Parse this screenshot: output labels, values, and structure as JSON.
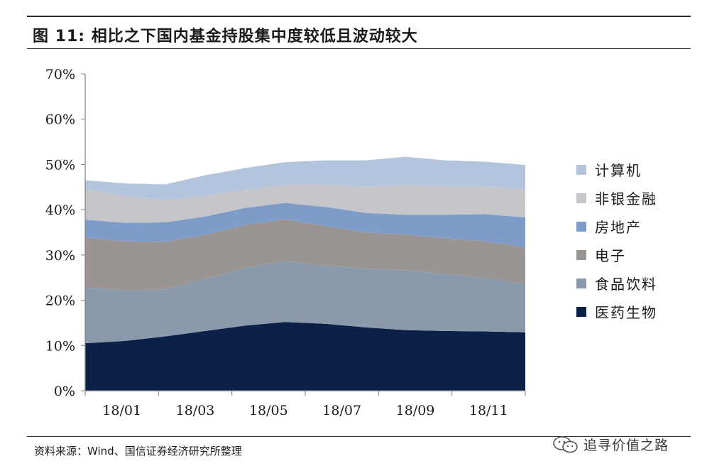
{
  "header": {
    "title": "图 11: 相比之下国内基金持股集中度较低且波动较大"
  },
  "footer": {
    "source": "资料来源：Wind、国信证券经济研究所整理"
  },
  "watermark": {
    "text": "追寻价值之路",
    "icon": "wechat-icon"
  },
  "chart_data": {
    "type": "area",
    "stacked": true,
    "x": [
      "18/01",
      "18/02",
      "18/03",
      "18/04",
      "18/05",
      "18/06",
      "18/07",
      "18/08",
      "18/09",
      "18/10",
      "18/11",
      "18/12"
    ],
    "xticks": [
      "18/01",
      "18/03",
      "18/05",
      "18/07",
      "18/09",
      "18/11"
    ],
    "xlabel": "",
    "ylabel": "",
    "ylim": [
      0,
      70
    ],
    "yticks": [
      "0%",
      "10%",
      "20%",
      "30%",
      "40%",
      "50%",
      "60%",
      "70%"
    ],
    "grid": false,
    "legend": "right",
    "series": [
      {
        "name": "医药生物",
        "color": "#0b2148",
        "values": [
          10.5,
          11.0,
          12.0,
          13.2,
          14.4,
          15.2,
          14.8,
          14.0,
          13.4,
          13.2,
          13.1,
          12.9
        ]
      },
      {
        "name": "食品饮料",
        "color": "#8a9aac",
        "values": [
          12.3,
          11.2,
          10.4,
          11.5,
          12.7,
          13.5,
          12.8,
          13.0,
          13.3,
          12.6,
          11.9,
          10.7
        ]
      },
      {
        "name": "电子",
        "color": "#9a9593",
        "values": [
          11.0,
          10.8,
          10.5,
          9.8,
          9.5,
          9.2,
          8.8,
          8.0,
          7.8,
          7.9,
          8.0,
          8.1
        ]
      },
      {
        "name": "房地产",
        "color": "#7d9cc7",
        "values": [
          4.0,
          4.1,
          4.3,
          4.0,
          3.8,
          3.6,
          4.2,
          4.3,
          4.4,
          5.2,
          6.0,
          6.6
        ]
      },
      {
        "name": "非银金融",
        "color": "#c6c5ca",
        "values": [
          6.8,
          5.9,
          4.9,
          4.6,
          4.0,
          4.0,
          5.0,
          5.8,
          6.6,
          6.3,
          6.2,
          6.1
        ]
      },
      {
        "name": "计算机",
        "color": "#b3c4dd",
        "values": [
          1.9,
          2.8,
          3.5,
          4.5,
          4.8,
          5.0,
          5.3,
          5.8,
          6.2,
          5.7,
          5.4,
          5.5
        ]
      }
    ]
  }
}
